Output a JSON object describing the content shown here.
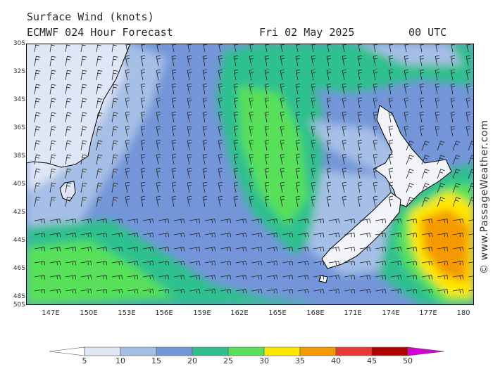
{
  "header": {
    "title": "Surface Wind (knots)",
    "model": "ECMWF 024 Hour Forecast",
    "date": "Fri 02 May 2025",
    "time": "00 UTC"
  },
  "credit": "© www.PassageWeather.com",
  "map": {
    "region": "Tasman Sea / New Zealand",
    "lat_labels": [
      "30S",
      "32S",
      "34S",
      "36S",
      "38S",
      "40S",
      "42S",
      "44S",
      "46S",
      "48S",
      "50S"
    ],
    "lon_labels": [
      "147E",
      "150E",
      "153E",
      "156E",
      "159E",
      "162E",
      "165E",
      "168E",
      "171E",
      "174E",
      "177E",
      "180"
    ],
    "lat_range": [
      -50,
      -30
    ],
    "lon_range": [
      144.5,
      180
    ]
  },
  "colorbar": {
    "ticks": [
      "5",
      "10",
      "15",
      "20",
      "25",
      "30",
      "35",
      "40",
      "45",
      "50"
    ],
    "colors": [
      "#ffffff",
      "#dfe6f6",
      "#a6bfe6",
      "#7496d8",
      "#2fc08e",
      "#58e05a",
      "#ffe800",
      "#f49a00",
      "#e83838",
      "#b00000",
      "#d400d4"
    ]
  },
  "palette": {
    "sea_slow": "#dfe6f6",
    "sea_light": "#a6bfe6",
    "sea_mid": "#7496d8",
    "teal": "#2fc08e",
    "green": "#58e05a",
    "yellow": "#ffe800",
    "orange": "#f49a00"
  }
}
